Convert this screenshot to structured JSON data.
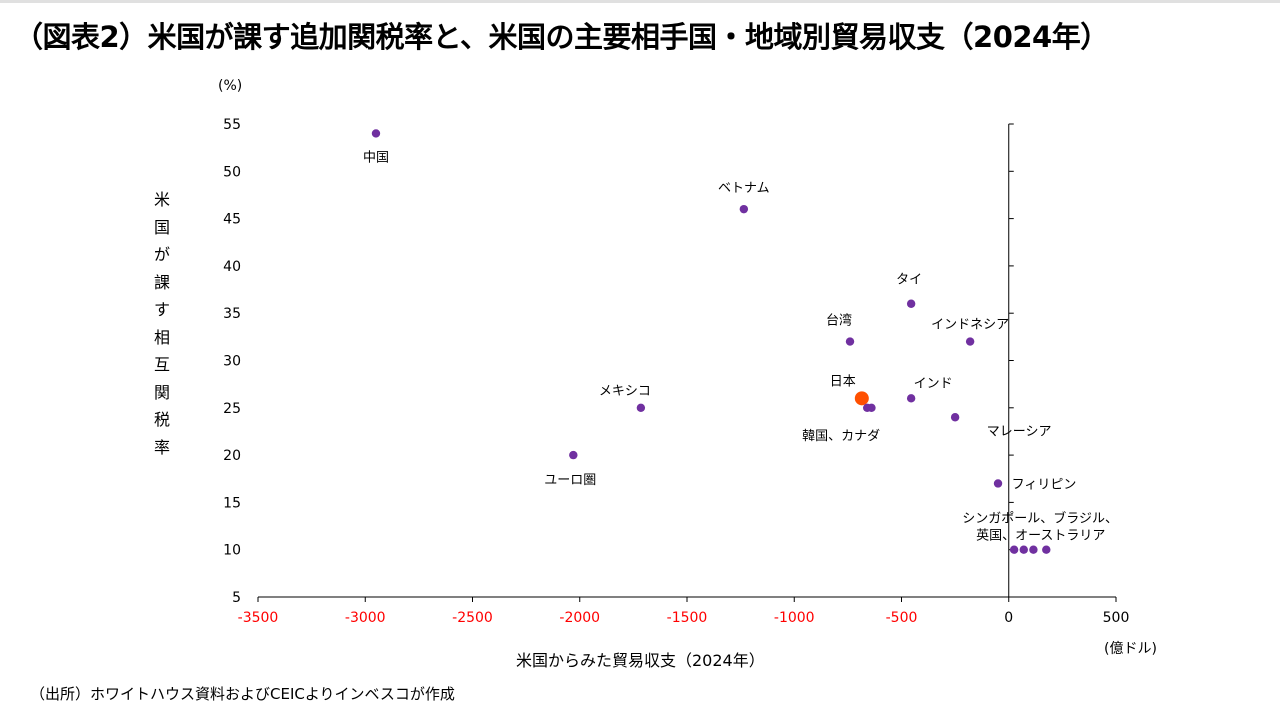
{
  "title": "（図表2）米国が課す追加関税率と、米国の主要相手国・地域別貿易収支（2024年）",
  "y_unit": "(%)",
  "x_unit": "(億ドル)",
  "source": "（出所）ホワイトハウス資料およびCEICよりインベスコが作成",
  "colors": {
    "point": "#7030a0",
    "highlight": "#ff5000",
    "negative_tick": "#ff0000",
    "positive_tick": "#000000"
  },
  "chart_data": {
    "type": "scatter",
    "title": "",
    "xlabel": "米国からみた貿易収支（2024年）",
    "ylabel": "米国が課す相互関税率",
    "xlim": [
      -3500,
      500
    ],
    "ylim": [
      5,
      55
    ],
    "x_ticks": [
      -3500,
      -3000,
      -2500,
      -2000,
      -1500,
      -1000,
      -500,
      0,
      500
    ],
    "y_ticks": [
      5,
      10,
      15,
      20,
      25,
      30,
      35,
      40,
      45,
      50,
      55
    ],
    "grid": false,
    "points": [
      {
        "label": "中国",
        "x": -2950,
        "y": 54
      },
      {
        "label": "ベトナム",
        "x": -1235,
        "y": 46
      },
      {
        "label": "タイ",
        "x": -455,
        "y": 36
      },
      {
        "label": "台湾",
        "x": -740,
        "y": 32
      },
      {
        "label": "インドネシア",
        "x": -180,
        "y": 32
      },
      {
        "label": "メキシコ",
        "x": -1715,
        "y": 25
      },
      {
        "label": "日本",
        "x": -685,
        "y": 26,
        "highlight": true
      },
      {
        "label": "インド",
        "x": -455,
        "y": 26
      },
      {
        "label": "韓国、カナダ",
        "x": -660,
        "y": 25
      },
      {
        "label": "",
        "x": -640,
        "y": 25
      },
      {
        "label": "マレーシア",
        "x": -250,
        "y": 24
      },
      {
        "label": "ユーロ圏",
        "x": -2030,
        "y": 20
      },
      {
        "label": "フィリピン",
        "x": -50,
        "y": 17
      },
      {
        "label": "シンガポール、ブラジル、",
        "x": 25,
        "y": 10
      },
      {
        "label": "英国、オーストラリア",
        "x": 70,
        "y": 10
      },
      {
        "label": "",
        "x": 115,
        "y": 10
      },
      {
        "label": "",
        "x": 175,
        "y": 10
      }
    ]
  }
}
